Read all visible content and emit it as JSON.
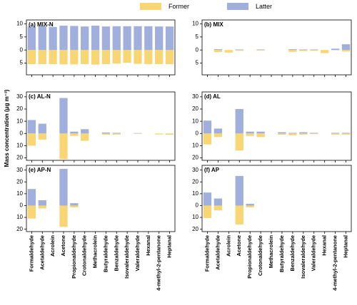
{
  "y_label": "Mass concentration (μg m⁻³)",
  "chart_data": [
    {
      "type": "bar",
      "title": "(a) MIX-N",
      "series": [
        {
          "name": "Former",
          "color": "#f9d674",
          "values": [
            -5.4,
            -5.4,
            -5.4,
            -5.5,
            -5.5,
            -5.4,
            -5.6,
            -5.4,
            -5.2,
            -4.9,
            -5.3,
            -5.4,
            -5.4,
            -5.4
          ]
        },
        {
          "name": "Latter",
          "color": "#a0afdc",
          "values": [
            9.0,
            9.1,
            8.8,
            9.3,
            9.2,
            9.0,
            9.3,
            9.0,
            9.1,
            9.1,
            9.1,
            9.1,
            9.0,
            9.0
          ]
        }
      ],
      "ylim": [
        -9.5,
        11.5
      ],
      "yticks": [
        {
          "value": -5,
          "label": "5"
        },
        0,
        5,
        10
      ]
    },
    {
      "type": "bar",
      "title": "(b) MIX",
      "series": [
        {
          "color": "#f9d674",
          "values": [
            0,
            -0.8,
            -1.0,
            -0.3,
            0,
            -0.2,
            0,
            0,
            -0.7,
            -0.4,
            -0.3,
            -1.2,
            -0.1,
            -0.6
          ]
        },
        {
          "color": "#a0afdc",
          "values": [
            0,
            0.3,
            0,
            0.2,
            0,
            0.2,
            0,
            0,
            0.3,
            0.2,
            0.2,
            0,
            0.5,
            2.2
          ]
        }
      ],
      "ylim": [
        -9.5,
        11.5
      ],
      "yticks": [
        {
          "value": -5,
          "label": "5"
        },
        0,
        5,
        10
      ]
    },
    {
      "type": "bar",
      "title": "(c) AL-N",
      "series": [
        {
          "color": "#f9d674",
          "values": [
            -10,
            -5,
            0,
            -21,
            -2,
            -6,
            0,
            -1,
            -1,
            0,
            -0.3,
            0,
            -0.8,
            -1
          ]
        },
        {
          "color": "#a0afdc",
          "values": [
            11,
            8,
            0,
            29,
            1.5,
            3.5,
            0,
            0.8,
            0.5,
            0,
            0.3,
            0,
            0,
            0
          ]
        }
      ],
      "ylim": [
        -22,
        34
      ],
      "yticks": [
        {
          "value": -20,
          "label": "20"
        },
        {
          "value": -10,
          "label": "10"
        },
        0,
        10,
        20,
        30
      ]
    },
    {
      "type": "bar",
      "title": "(d) AL",
      "series": [
        {
          "color": "#f9d674",
          "values": [
            -9,
            -3,
            0,
            -14,
            -2,
            -3,
            0,
            -1,
            -1.5,
            -1,
            -0.5,
            0,
            -1,
            -1
          ]
        },
        {
          "color": "#a0afdc",
          "values": [
            10.5,
            4,
            0,
            20,
            1.5,
            1.5,
            0,
            1,
            0.5,
            1,
            0.5,
            0,
            0.5,
            0.5
          ]
        }
      ],
      "ylim": [
        -22,
        34
      ],
      "yticks": [
        {
          "value": -20,
          "label": "20"
        },
        {
          "value": -10,
          "label": "10"
        },
        0,
        10,
        20,
        30
      ]
    },
    {
      "type": "bar",
      "title": "(e) AP-N",
      "categories": [
        "Formaldehyde",
        "Acetaldehyde",
        "Acrolein",
        "Acetone",
        "Propionaldehyde",
        "Crotonaldehyde",
        "Methacrolein",
        "Butyraldehyde",
        "Benzaldehyde",
        "Isovaleraldehyde",
        "Valeraldehyde",
        "Hexanal",
        "4-methyl-2-pentanone",
        "Heptanal"
      ],
      "series": [
        {
          "color": "#f9d674",
          "values": [
            -11,
            -2.5,
            0,
            -18,
            -1.5,
            0,
            0,
            0,
            0,
            0,
            0,
            0,
            0,
            0
          ]
        },
        {
          "color": "#a0afdc",
          "values": [
            14,
            4.5,
            0,
            31,
            2,
            0,
            0,
            0,
            0,
            0,
            0,
            0,
            0,
            0
          ]
        }
      ],
      "ylim": [
        -22,
        34
      ],
      "yticks": [
        {
          "value": -20,
          "label": "20"
        },
        {
          "value": -10,
          "label": "10"
        },
        0,
        10,
        20,
        30
      ]
    },
    {
      "type": "bar",
      "title": "(f) AP",
      "categories": [
        "Formaldehyde",
        "Acetaldehyde",
        "Acrolein",
        "Acetone",
        "Propionaldehyde",
        "Crotonaldehyde",
        "Methacrolein",
        "Butyraldehyde",
        "Benzaldehyde",
        "Isovaleraldehyde",
        "Valeraldehyde",
        "Hexanal",
        "4-methyl-2-pentanone",
        "Heptanal"
      ],
      "series": [
        {
          "color": "#f9d674",
          "values": [
            -10.5,
            -4,
            0,
            -16,
            -1.5,
            0,
            0,
            0,
            0,
            0,
            0,
            0,
            0,
            0
          ]
        },
        {
          "color": "#a0afdc",
          "values": [
            11,
            6,
            0,
            25,
            1.5,
            0,
            0,
            0,
            0,
            0,
            0,
            0,
            0,
            0
          ]
        }
      ],
      "ylim": [
        -22,
        34
      ],
      "yticks": [
        {
          "value": -20,
          "label": "20"
        },
        {
          "value": -10,
          "label": "10"
        },
        0,
        10,
        20,
        30
      ]
    }
  ]
}
